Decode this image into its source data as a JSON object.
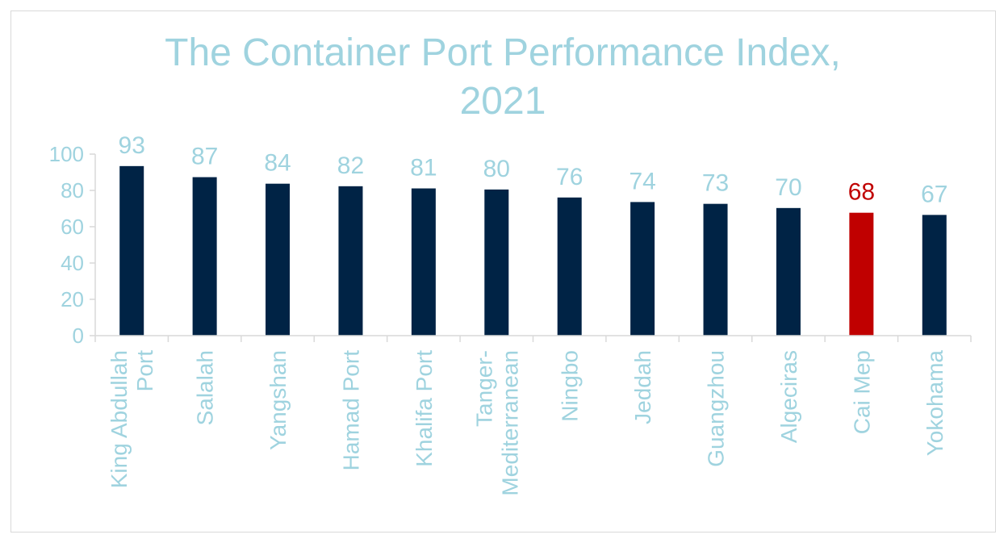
{
  "chart_data": {
    "type": "bar",
    "title": "The Container Port Performance Index, 2021",
    "title_lines": [
      "The Container Port Performance Index,",
      "2021"
    ],
    "categories": [
      "King Abdullah Port",
      "Salalah",
      "Yangshan",
      "Hamad Port",
      "Khalifa Port",
      "Tanger-Mediterranean",
      "Ningbo",
      "Jeddah",
      "Guangzhou",
      "Algeciras",
      "Cai Mep",
      "Yokohama"
    ],
    "category_lines": [
      [
        "King Abdullah",
        "Port"
      ],
      [
        "Salalah"
      ],
      [
        "Yangshan"
      ],
      [
        "Hamad Port"
      ],
      [
        "Khalifa Port"
      ],
      [
        "Tanger-",
        "Mediterranean"
      ],
      [
        "Ningbo"
      ],
      [
        "Jeddah"
      ],
      [
        "Guangzhou"
      ],
      [
        "Algeciras"
      ],
      [
        "Cai Mep"
      ],
      [
        "Yokohama"
      ]
    ],
    "values": [
      93.4,
      87.3,
      83.7,
      82.3,
      81.1,
      80.5,
      76.1,
      73.6,
      72.6,
      70.3,
      67.7,
      66.5
    ],
    "value_labels": [
      "93",
      "87",
      "84",
      "82",
      "81",
      "80",
      "76",
      "74",
      "73",
      "70",
      "68",
      "67"
    ],
    "highlight_category": "Cai Mep",
    "ylim": [
      0,
      100
    ],
    "yticks": [
      0,
      20,
      40,
      60,
      80,
      100
    ],
    "xlabel": "",
    "ylabel": "",
    "grid": false,
    "legend": "none",
    "colors": {
      "bar": "#002345",
      "highlight_bar": "#c00000",
      "highlight_label": "#c00000",
      "text": "#9fd3df",
      "axis": "#d9d9d9",
      "border": "#d9d9d9"
    }
  }
}
